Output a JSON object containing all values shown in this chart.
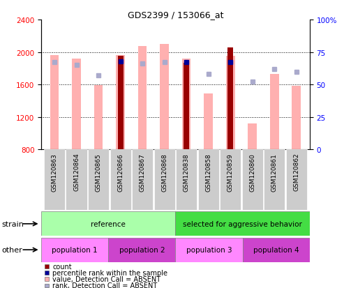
{
  "title": "GDS2399 / 153066_at",
  "samples": [
    "GSM120863",
    "GSM120864",
    "GSM120865",
    "GSM120866",
    "GSM120867",
    "GSM120868",
    "GSM120838",
    "GSM120858",
    "GSM120859",
    "GSM120860",
    "GSM120861",
    "GSM120862"
  ],
  "count_values": [
    null,
    null,
    null,
    1950,
    null,
    null,
    1870,
    null,
    2060,
    null,
    null,
    null
  ],
  "value_absent": [
    1960,
    1920,
    1590,
    1960,
    2070,
    2100,
    1920,
    1490,
    1950,
    1120,
    1730,
    1580
  ],
  "rank_absent": [
    67,
    65,
    57,
    68,
    66,
    67,
    64,
    58,
    67,
    52,
    62,
    60
  ],
  "percentile_rank": [
    null,
    null,
    null,
    68,
    null,
    null,
    67,
    null,
    67,
    null,
    null,
    null
  ],
  "ylim_left": [
    800,
    2400
  ],
  "ylim_right": [
    0,
    100
  ],
  "yticks_left": [
    800,
    1200,
    1600,
    2000,
    2400
  ],
  "yticks_right": [
    0,
    25,
    50,
    75,
    100
  ],
  "color_count": "#990000",
  "color_pct_rank": "#000099",
  "color_value_absent": "#ffb0b0",
  "color_rank_absent": "#aaaacc",
  "strain_labels": [
    "reference",
    "selected for aggressive behavior"
  ],
  "strain_colors": [
    "#aaffaa",
    "#44dd44"
  ],
  "other_labels": [
    "population 1",
    "population 2",
    "population 3",
    "population 4"
  ],
  "other_colors_light": "#ff88ff",
  "other_colors_dark": "#cc44cc",
  "legend_items": [
    {
      "label": "count",
      "color": "#990000"
    },
    {
      "label": "percentile rank within the sample",
      "color": "#000099"
    },
    {
      "label": "value, Detection Call = ABSENT",
      "color": "#ffb0b0"
    },
    {
      "label": "rank, Detection Call = ABSENT",
      "color": "#aaaacc"
    }
  ]
}
